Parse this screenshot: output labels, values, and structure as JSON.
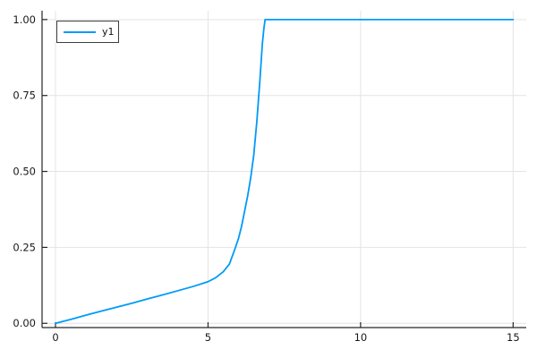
{
  "chart_data": {
    "type": "line",
    "title": "",
    "xlabel": "",
    "ylabel": "",
    "grid": true,
    "legend_position": "top-left",
    "xlim": [
      -0.44,
      15.43
    ],
    "ylim": [
      -0.014,
      1.029
    ],
    "xticks": {
      "values": [
        0,
        5,
        10,
        15
      ],
      "labels": [
        "0",
        "5",
        "10",
        "15"
      ]
    },
    "yticks": {
      "values": [
        0.0,
        0.25,
        0.5,
        0.75,
        1.0
      ],
      "labels": [
        "0.00",
        "0.25",
        "0.50",
        "0.75",
        "1.00"
      ]
    },
    "series": [
      {
        "name": "y1",
        "color": "#009af9",
        "x": [
          0,
          0.5,
          1,
          1.5,
          2,
          2.5,
          3,
          3.5,
          4,
          4.5,
          5,
          5.25,
          5.5,
          5.7,
          5.9,
          6.0,
          6.1,
          6.2,
          6.3,
          6.4,
          6.5,
          6.6,
          6.7,
          6.78,
          6.83,
          6.87,
          7,
          7.5,
          8,
          8.5,
          9,
          9.5,
          10,
          10.5,
          11,
          11.5,
          12,
          12.5,
          13,
          13.5,
          14,
          14.5,
          15
        ],
        "y": [
          0,
          0.013,
          0.027,
          0.04,
          0.053,
          0.066,
          0.08,
          0.093,
          0.107,
          0.121,
          0.137,
          0.15,
          0.17,
          0.195,
          0.25,
          0.28,
          0.32,
          0.37,
          0.42,
          0.48,
          0.555,
          0.665,
          0.8,
          0.92,
          0.97,
          1.0,
          1.0,
          1.0,
          1.0,
          1.0,
          1.0,
          1.0,
          1.0,
          1.0,
          1.0,
          1.0,
          1.0,
          1.0,
          1.0,
          1.0,
          1.0,
          1.0,
          1.0
        ]
      }
    ]
  },
  "colors": {
    "background": "#ffffff",
    "series": "#009af9",
    "grid": "#e4e4e4",
    "spine": "#262626",
    "tick_label": "#191919",
    "legend_border": "#3c3c3c",
    "legend_bg": "#ffffff"
  }
}
